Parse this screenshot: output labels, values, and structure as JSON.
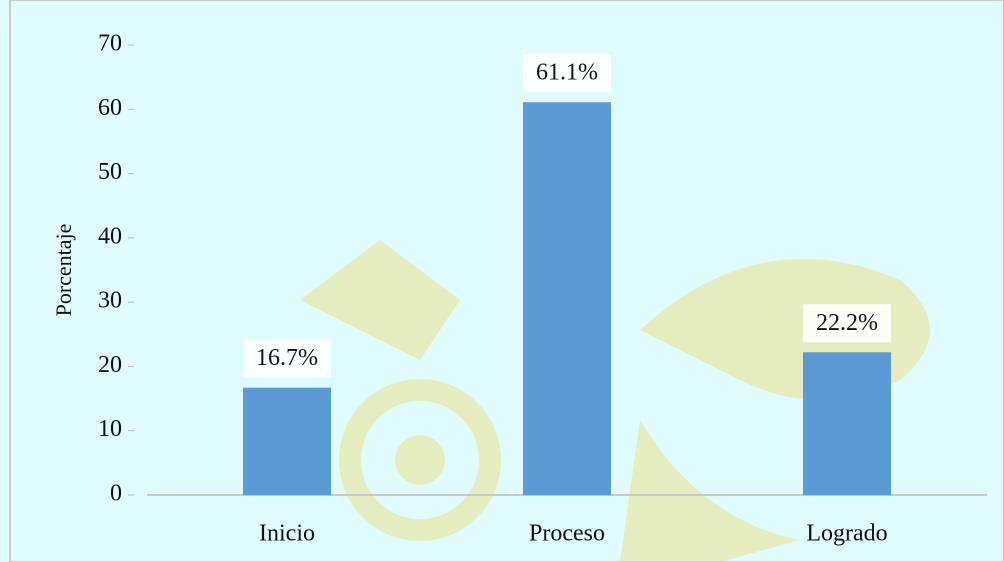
{
  "chart_data": {
    "type": "bar",
    "y_label": "Porcentaje",
    "categories": [
      "Inicio",
      "Proceso",
      "Logrado"
    ],
    "values": [
      16.7,
      61.1,
      22.2
    ],
    "value_labels": [
      "16.7%",
      "61.1%",
      "22.2%"
    ],
    "color": "#5b9bd5",
    "ylim": [
      0,
      70
    ],
    "yticks": [
      0,
      10,
      20,
      30,
      40,
      50,
      60,
      70
    ],
    "grid": false
  }
}
